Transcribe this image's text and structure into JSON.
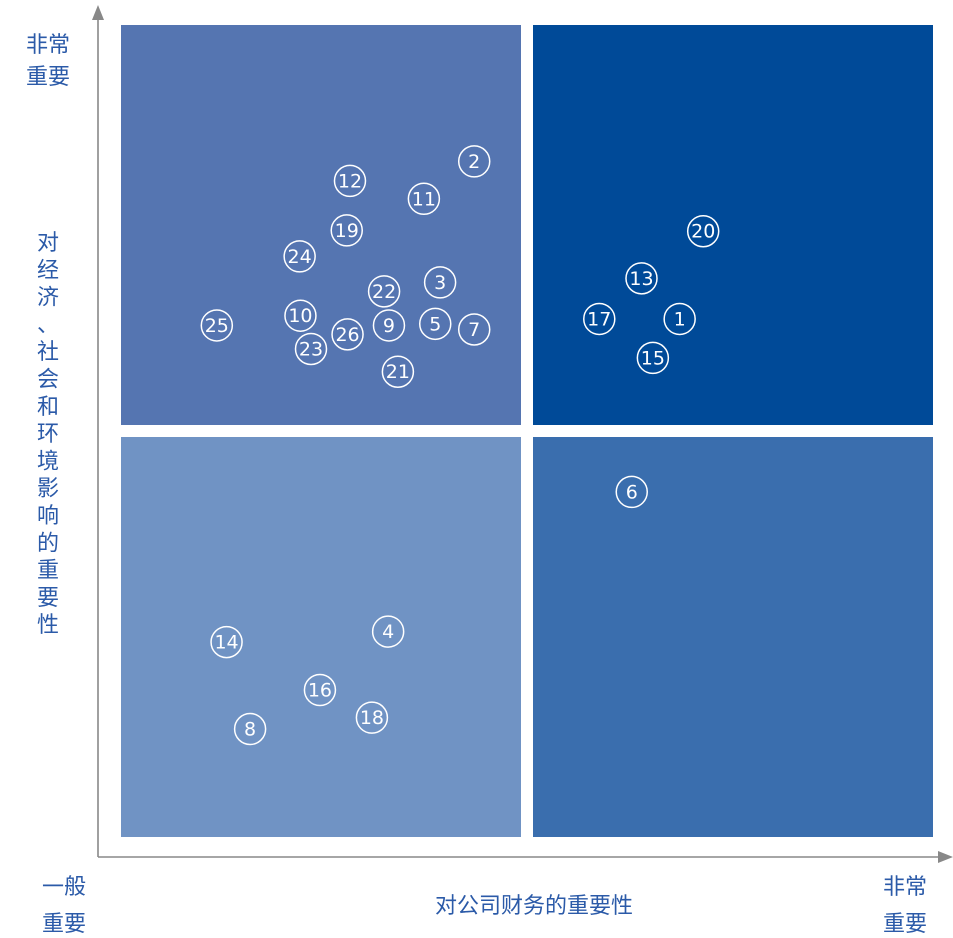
{
  "chart_data": {
    "type": "scatter",
    "title": "",
    "xlabel": "对公司财务的重要性",
    "ylabel": "对经济、社会和环境影响的重要性",
    "x_min_label": [
      "一般",
      "重要"
    ],
    "x_max_label": [
      "非常",
      "重要"
    ],
    "y_max_label": [
      "非常",
      "重要"
    ],
    "xlim": [
      0,
      1
    ],
    "ylim": [
      0,
      1
    ],
    "quadrant_colors": {
      "top_left": "#5575b1",
      "top_right": "#004a98",
      "bottom_left": "#7093c4",
      "bottom_right": "#3a6eae"
    },
    "axis_color": "#888888",
    "text_color": "#2b5aa8",
    "points": [
      {
        "id": "1",
        "x": 0.688,
        "y": 0.638
      },
      {
        "id": "2",
        "x": 0.435,
        "y": 0.832
      },
      {
        "id": "3",
        "x": 0.393,
        "y": 0.683
      },
      {
        "id": "4",
        "x": 0.329,
        "y": 0.253
      },
      {
        "id": "5",
        "x": 0.387,
        "y": 0.632
      },
      {
        "id": "6",
        "x": 0.629,
        "y": 0.425
      },
      {
        "id": "7",
        "x": 0.435,
        "y": 0.625
      },
      {
        "id": "8",
        "x": 0.159,
        "y": 0.133
      },
      {
        "id": "9",
        "x": 0.33,
        "y": 0.63
      },
      {
        "id": "10",
        "x": 0.221,
        "y": 0.642
      },
      {
        "id": "11",
        "x": 0.373,
        "y": 0.786
      },
      {
        "id": "12",
        "x": 0.282,
        "y": 0.808
      },
      {
        "id": "13",
        "x": 0.641,
        "y": 0.688
      },
      {
        "id": "14",
        "x": 0.13,
        "y": 0.24
      },
      {
        "id": "15",
        "x": 0.655,
        "y": 0.59
      },
      {
        "id": "16",
        "x": 0.245,
        "y": 0.181
      },
      {
        "id": "17",
        "x": 0.589,
        "y": 0.638
      },
      {
        "id": "18",
        "x": 0.309,
        "y": 0.147
      },
      {
        "id": "19",
        "x": 0.278,
        "y": 0.747
      },
      {
        "id": "20",
        "x": 0.717,
        "y": 0.746
      },
      {
        "id": "21",
        "x": 0.341,
        "y": 0.573
      },
      {
        "id": "22",
        "x": 0.324,
        "y": 0.672
      },
      {
        "id": "23",
        "x": 0.234,
        "y": 0.601
      },
      {
        "id": "24",
        "x": 0.22,
        "y": 0.715
      },
      {
        "id": "25",
        "x": 0.118,
        "y": 0.63
      },
      {
        "id": "26",
        "x": 0.279,
        "y": 0.619
      }
    ]
  }
}
